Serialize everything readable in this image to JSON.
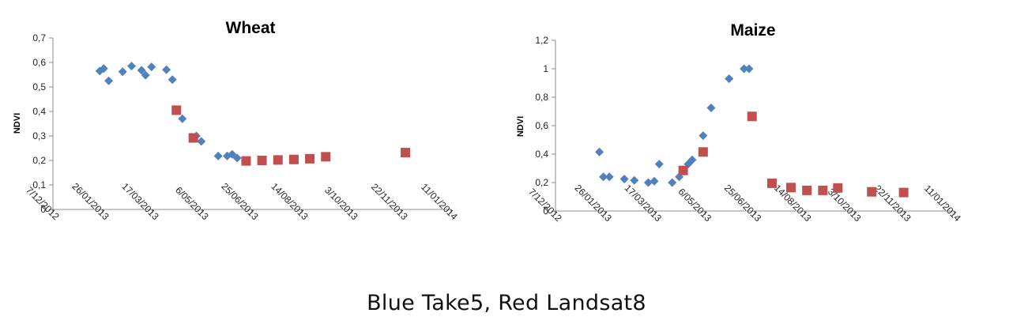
{
  "caption": "Blue Take5, Red Landsat8",
  "chart_data": [
    {
      "type": "scatter",
      "title": "Wheat",
      "ylabel": "NDVI",
      "xlabel": "",
      "x_ticks": [
        "7/12/2012",
        "26/01/2013",
        "17/03/2013",
        "6/05/2013",
        "25/06/2013",
        "14/08/2013",
        "3/10/2013",
        "22/11/2013",
        "11/01/2014"
      ],
      "y_ticks": [
        "0",
        "0,1",
        "0,2",
        "0,3",
        "0,4",
        "0,5",
        "0,6",
        "0,7"
      ],
      "xlim": [
        "2012-12-07",
        "2014-01-11"
      ],
      "ylim": [
        0,
        0.7
      ],
      "grid": false,
      "series": [
        {
          "color": "#4F81BD",
          "marker": "diamond",
          "points": [
            [
              "2013-01-23",
              0.565
            ],
            [
              "2013-01-27",
              0.575
            ],
            [
              "2013-02-01",
              0.525
            ],
            [
              "2013-02-15",
              0.562
            ],
            [
              "2013-02-24",
              0.585
            ],
            [
              "2013-03-06",
              0.568
            ],
            [
              "2013-03-10",
              0.548
            ],
            [
              "2013-03-16",
              0.582
            ],
            [
              "2013-03-31",
              0.57
            ],
            [
              "2013-04-06",
              0.53
            ],
            [
              "2013-04-16",
              0.37
            ],
            [
              "2013-04-30",
              0.3
            ],
            [
              "2013-05-05",
              0.278
            ],
            [
              "2013-05-22",
              0.218
            ],
            [
              "2013-05-31",
              0.218
            ],
            [
              "2013-06-05",
              0.225
            ],
            [
              "2013-06-10",
              0.21
            ]
          ]
        },
        {
          "color": "#C0504D",
          "marker": "square",
          "points": [
            [
              "2013-04-10",
              0.405
            ],
            [
              "2013-04-27",
              0.292
            ],
            [
              "2013-06-19",
              0.198
            ],
            [
              "2013-07-05",
              0.2
            ],
            [
              "2013-07-21",
              0.202
            ],
            [
              "2013-08-06",
              0.204
            ],
            [
              "2013-08-22",
              0.207
            ],
            [
              "2013-09-07",
              0.215
            ],
            [
              "2013-11-26",
              0.232
            ]
          ]
        }
      ]
    },
    {
      "type": "scatter",
      "title": "Maize",
      "ylabel": "NDVI",
      "xlabel": "",
      "x_ticks": [
        "7/12/2012",
        "26/01/2013",
        "17/03/2013",
        "6/05/2013",
        "25/06/2013",
        "14/08/2013",
        "3/10/2013",
        "22/11/2013",
        "11/01/2014"
      ],
      "y_ticks": [
        "0",
        "0,2",
        "0,4",
        "0,6",
        "0,8",
        "1",
        "1,2"
      ],
      "xlim": [
        "2012-12-07",
        "2014-01-11"
      ],
      "ylim": [
        0,
        1.2
      ],
      "grid": false,
      "series": [
        {
          "color": "#4F81BD",
          "marker": "diamond",
          "points": [
            [
              "2013-01-20",
              0.415
            ],
            [
              "2013-01-24",
              0.24
            ],
            [
              "2013-01-30",
              0.24
            ],
            [
              "2013-02-14",
              0.225
            ],
            [
              "2013-02-24",
              0.215
            ],
            [
              "2013-03-10",
              0.2
            ],
            [
              "2013-03-16",
              0.21
            ],
            [
              "2013-03-21",
              0.33
            ],
            [
              "2013-04-03",
              0.2
            ],
            [
              "2013-04-10",
              0.24
            ],
            [
              "2013-04-14",
              0.29
            ],
            [
              "2013-04-19",
              0.33
            ],
            [
              "2013-04-23",
              0.36
            ],
            [
              "2013-05-04",
              0.53
            ],
            [
              "2013-05-12",
              0.725
            ],
            [
              "2013-05-30",
              0.93
            ],
            [
              "2013-06-14",
              1.0
            ],
            [
              "2013-06-19",
              1.0
            ]
          ]
        },
        {
          "color": "#C0504D",
          "marker": "square",
          "points": [
            [
              "2013-04-14",
              0.285
            ],
            [
              "2013-05-04",
              0.415
            ],
            [
              "2013-06-22",
              0.665
            ],
            [
              "2013-07-12",
              0.195
            ],
            [
              "2013-07-31",
              0.165
            ],
            [
              "2013-08-16",
              0.145
            ],
            [
              "2013-09-01",
              0.145
            ],
            [
              "2013-09-16",
              0.162
            ],
            [
              "2013-10-20",
              0.135
            ],
            [
              "2013-11-21",
              0.13
            ]
          ]
        }
      ]
    }
  ]
}
